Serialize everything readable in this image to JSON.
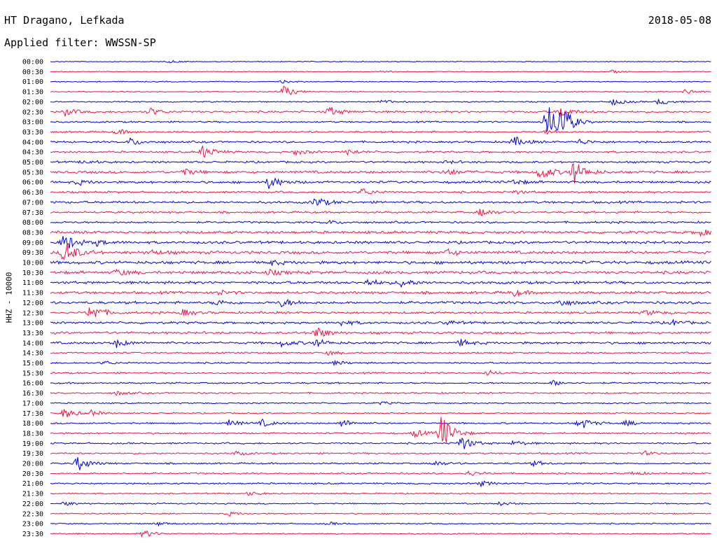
{
  "header": {
    "station": "HT Dragano, Lefkada",
    "filter": "Applied filter: WWSSN-SP",
    "date": "2018-05-08"
  },
  "chart_data": {
    "type": "line",
    "ylabel": "HHZ - 10000",
    "colors": {
      "even": "#0000dd",
      "odd": "#ee1144"
    },
    "rows": [
      {
        "label": "00:00",
        "events": [
          [
            0.18,
            2
          ]
        ],
        "noise": 0.5
      },
      {
        "label": "00:30",
        "events": [
          [
            0.5,
            2
          ],
          [
            0.85,
            2
          ]
        ],
        "noise": 0.5
      },
      {
        "label": "01:00",
        "events": [
          [
            0.35,
            2
          ]
        ],
        "noise": 0.6
      },
      {
        "label": "01:30",
        "events": [
          [
            0.35,
            10
          ],
          [
            0.96,
            4
          ]
        ],
        "noise": 0.6
      },
      {
        "label": "02:00",
        "events": [
          [
            0.5,
            3
          ],
          [
            0.85,
            5
          ],
          [
            0.92,
            5
          ]
        ],
        "noise": 0.8
      },
      {
        "label": "02:30",
        "events": [
          [
            0.02,
            6
          ],
          [
            0.15,
            6
          ],
          [
            0.42,
            8
          ],
          [
            0.77,
            9
          ]
        ],
        "noise": 1.2
      },
      {
        "label": "03:00",
        "events": [
          [
            0.75,
            30
          ],
          [
            0.77,
            26
          ]
        ],
        "noise": 1.0
      },
      {
        "label": "03:30",
        "events": [
          [
            0.1,
            4
          ],
          [
            0.75,
            3
          ]
        ],
        "noise": 1.0
      },
      {
        "label": "04:00",
        "events": [
          [
            0.12,
            6
          ],
          [
            0.7,
            8
          ],
          [
            0.8,
            4
          ]
        ],
        "noise": 1.2
      },
      {
        "label": "04:30",
        "events": [
          [
            0.23,
            10
          ],
          [
            0.37,
            4
          ],
          [
            0.45,
            4
          ]
        ],
        "noise": 1.2
      },
      {
        "label": "05:00",
        "events": [
          [
            0.05,
            3
          ],
          [
            0.6,
            2
          ]
        ],
        "noise": 1.2
      },
      {
        "label": "05:30",
        "events": [
          [
            0.2,
            5
          ],
          [
            0.6,
            5
          ],
          [
            0.74,
            12
          ],
          [
            0.79,
            18
          ]
        ],
        "noise": 1.6
      },
      {
        "label": "06:00",
        "events": [
          [
            0.04,
            4
          ],
          [
            0.33,
            10
          ],
          [
            0.7,
            4
          ]
        ],
        "noise": 1.4
      },
      {
        "label": "06:30",
        "events": [
          [
            0.47,
            6
          ],
          [
            0.7,
            3
          ]
        ],
        "noise": 1.2
      },
      {
        "label": "07:00",
        "events": [
          [
            0.4,
            8
          ]
        ],
        "noise": 1.4
      },
      {
        "label": "07:30",
        "events": [
          [
            0.65,
            6
          ]
        ],
        "noise": 1.2
      },
      {
        "label": "08:00",
        "events": [
          [
            0.42,
            3
          ]
        ],
        "noise": 1.2
      },
      {
        "label": "08:30",
        "events": [
          [
            0.98,
            6
          ]
        ],
        "noise": 1.6
      },
      {
        "label": "09:00",
        "events": [
          [
            0.02,
            14
          ],
          [
            0.07,
            4
          ]
        ],
        "noise": 1.6
      },
      {
        "label": "09:30",
        "events": [
          [
            0.02,
            20
          ],
          [
            0.15,
            4
          ],
          [
            0.6,
            5
          ]
        ],
        "noise": 1.8
      },
      {
        "label": "10:00",
        "events": [
          [
            0.33,
            4
          ]
        ],
        "noise": 1.8
      },
      {
        "label": "10:30",
        "events": [
          [
            0.1,
            5
          ],
          [
            0.33,
            4
          ]
        ],
        "noise": 1.8
      },
      {
        "label": "11:00",
        "events": [
          [
            0.48,
            5
          ],
          [
            0.53,
            6
          ]
        ],
        "noise": 1.6
      },
      {
        "label": "11:30",
        "events": [
          [
            0.25,
            4
          ],
          [
            0.7,
            5
          ]
        ],
        "noise": 1.6
      },
      {
        "label": "12:00",
        "events": [
          [
            0.25,
            4
          ],
          [
            0.35,
            6
          ],
          [
            0.77,
            5
          ]
        ],
        "noise": 1.6
      },
      {
        "label": "12:30",
        "events": [
          [
            0.06,
            14
          ],
          [
            0.2,
            5
          ],
          [
            0.9,
            4
          ]
        ],
        "noise": 1.4
      },
      {
        "label": "13:00",
        "events": [
          [
            0.44,
            4
          ],
          [
            0.6,
            3
          ],
          [
            0.94,
            4
          ]
        ],
        "noise": 1.4
      },
      {
        "label": "13:30",
        "events": [
          [
            0.4,
            10
          ]
        ],
        "noise": 1.4
      },
      {
        "label": "14:00",
        "events": [
          [
            0.1,
            6
          ],
          [
            0.35,
            5
          ],
          [
            0.4,
            6
          ],
          [
            0.62,
            5
          ]
        ],
        "noise": 1.4
      },
      {
        "label": "14:30",
        "events": [
          [
            0.42,
            3
          ]
        ],
        "noise": 1.0
      },
      {
        "label": "15:00",
        "events": [
          [
            0.08,
            3
          ],
          [
            0.43,
            3
          ]
        ],
        "noise": 1.0
      },
      {
        "label": "15:30",
        "events": [
          [
            0.66,
            4
          ]
        ],
        "noise": 1.0
      },
      {
        "label": "16:00",
        "events": [
          [
            0.76,
            4
          ]
        ],
        "noise": 1.0
      },
      {
        "label": "16:30",
        "events": [
          [
            0.1,
            3
          ]
        ],
        "noise": 1.0
      },
      {
        "label": "17:00",
        "events": [
          [
            0.5,
            2
          ]
        ],
        "noise": 0.8
      },
      {
        "label": "17:30",
        "events": [
          [
            0.02,
            8
          ],
          [
            0.06,
            4
          ]
        ],
        "noise": 0.8
      },
      {
        "label": "18:00",
        "events": [
          [
            0.27,
            5
          ],
          [
            0.32,
            5
          ],
          [
            0.44,
            6
          ],
          [
            0.8,
            10
          ],
          [
            0.87,
            4
          ]
        ],
        "noise": 1.0
      },
      {
        "label": "18:30",
        "events": [
          [
            0.55,
            6
          ],
          [
            0.59,
            30
          ]
        ],
        "noise": 1.0
      },
      {
        "label": "19:00",
        "events": [
          [
            0.62,
            12
          ],
          [
            0.7,
            4
          ]
        ],
        "noise": 1.0
      },
      {
        "label": "19:30",
        "events": [
          [
            0.28,
            3
          ],
          [
            0.9,
            3
          ]
        ],
        "noise": 1.0
      },
      {
        "label": "20:00",
        "events": [
          [
            0.04,
            12
          ],
          [
            0.58,
            4
          ],
          [
            0.73,
            4
          ]
        ],
        "noise": 1.0
      },
      {
        "label": "20:30",
        "events": [
          [
            0.63,
            4
          ],
          [
            0.88,
            3
          ]
        ],
        "noise": 1.0
      },
      {
        "label": "21:00",
        "events": [
          [
            0.65,
            4
          ]
        ],
        "noise": 1.0
      },
      {
        "label": "21:30",
        "events": [
          [
            0.3,
            3
          ]
        ],
        "noise": 0.8
      },
      {
        "label": "22:00",
        "events": [
          [
            0.02,
            3
          ],
          [
            0.68,
            3
          ]
        ],
        "noise": 0.8
      },
      {
        "label": "22:30",
        "events": [
          [
            0.27,
            3
          ]
        ],
        "noise": 0.8
      },
      {
        "label": "23:00",
        "events": [
          [
            0.16,
            3
          ],
          [
            0.42,
            2
          ]
        ],
        "noise": 0.8
      },
      {
        "label": "23:30",
        "events": [
          [
            0.14,
            6
          ]
        ],
        "noise": 0.8
      }
    ]
  }
}
